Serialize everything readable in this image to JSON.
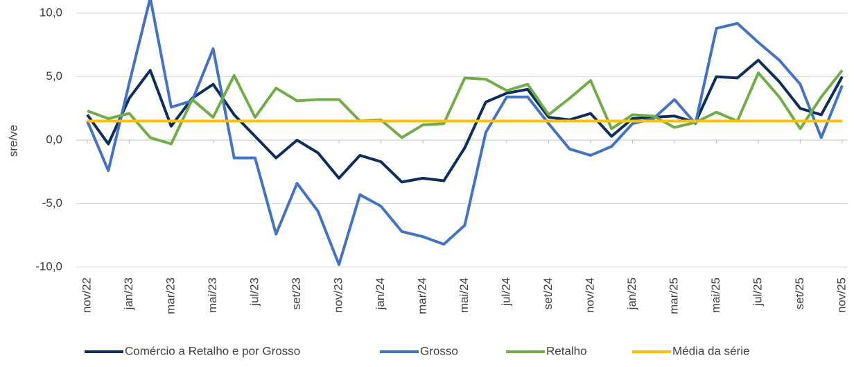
{
  "chart_data": {
    "type": "line",
    "y_label": "sre/ve",
    "categories": [
      "nov/22",
      null,
      "jan/23",
      null,
      "mar/23",
      null,
      "mai/23",
      null,
      "jul/23",
      null,
      "set/23",
      null,
      "nov/23",
      null,
      "jan/24",
      null,
      "mar/24",
      null,
      "mai/24",
      null,
      "jul/24",
      null,
      "set/24",
      null,
      "nov/24",
      null,
      "jan/25",
      null,
      "mar/25",
      null,
      "mai/25",
      null,
      "jul/25",
      null,
      "set/25",
      null,
      "nov/25"
    ],
    "series": [
      {
        "name": "Comércio a Retalho e por Grosso",
        "color": "#0d2d5a",
        "values": [
          2.0,
          -0.3,
          3.3,
          5.5,
          1.1,
          3.3,
          4.4,
          2.0,
          0.3,
          -1.4,
          0.0,
          -1.0,
          -3.0,
          -1.2,
          -1.7,
          -3.3,
          -3.0,
          -3.2,
          -0.6,
          3.0,
          3.7,
          4.0,
          1.8,
          1.6,
          2.1,
          0.3,
          1.7,
          1.8,
          1.9,
          1.4,
          5.0,
          4.9,
          6.3,
          4.6,
          2.5,
          2.0,
          5.0
        ]
      },
      {
        "name": "Grosso",
        "color": "#4472c4",
        "values": [
          1.5,
          -2.4,
          4.5,
          11.2,
          2.6,
          3.1,
          7.2,
          -1.4,
          -1.4,
          -7.4,
          -3.4,
          -5.6,
          -9.8,
          -4.3,
          -5.2,
          -7.2,
          -7.6,
          -8.2,
          -6.7,
          0.6,
          3.4,
          3.4,
          1.3,
          -0.7,
          -1.2,
          -0.5,
          1.3,
          1.7,
          3.2,
          1.3,
          8.8,
          9.2,
          7.7,
          6.3,
          4.4,
          0.2,
          4.3
        ]
      },
      {
        "name": "Retalho",
        "color": "#70ad47",
        "values": [
          2.3,
          1.7,
          2.1,
          0.2,
          -0.3,
          3.2,
          1.8,
          5.1,
          1.8,
          4.1,
          3.1,
          3.2,
          3.2,
          1.5,
          1.6,
          0.2,
          1.2,
          1.3,
          4.9,
          4.8,
          3.9,
          4.4,
          2.0,
          3.3,
          4.7,
          0.9,
          2.0,
          1.9,
          1.0,
          1.4,
          2.2,
          1.5,
          5.3,
          3.4,
          0.9,
          3.4,
          5.5
        ]
      },
      {
        "name": "Média da série",
        "color": "#ffc000",
        "values": [
          1.5,
          1.5,
          1.5,
          1.5,
          1.5,
          1.5,
          1.5,
          1.5,
          1.5,
          1.5,
          1.5,
          1.5,
          1.5,
          1.5,
          1.5,
          1.5,
          1.5,
          1.5,
          1.5,
          1.5,
          1.5,
          1.5,
          1.5,
          1.5,
          1.5,
          1.5,
          1.5,
          1.5,
          1.5,
          1.5,
          1.5,
          1.5,
          1.5,
          1.5,
          1.5,
          1.5,
          1.5
        ]
      }
    ],
    "ylim": [
      -10,
      10
    ],
    "yticks": [
      {
        "value": -10,
        "label": "-10,0"
      },
      {
        "value": -5,
        "label": "-5,0"
      },
      {
        "value": 0,
        "label": "0,0"
      },
      {
        "value": 5,
        "label": "5,0"
      },
      {
        "value": 10,
        "label": "10,0"
      }
    ],
    "grid": true
  }
}
